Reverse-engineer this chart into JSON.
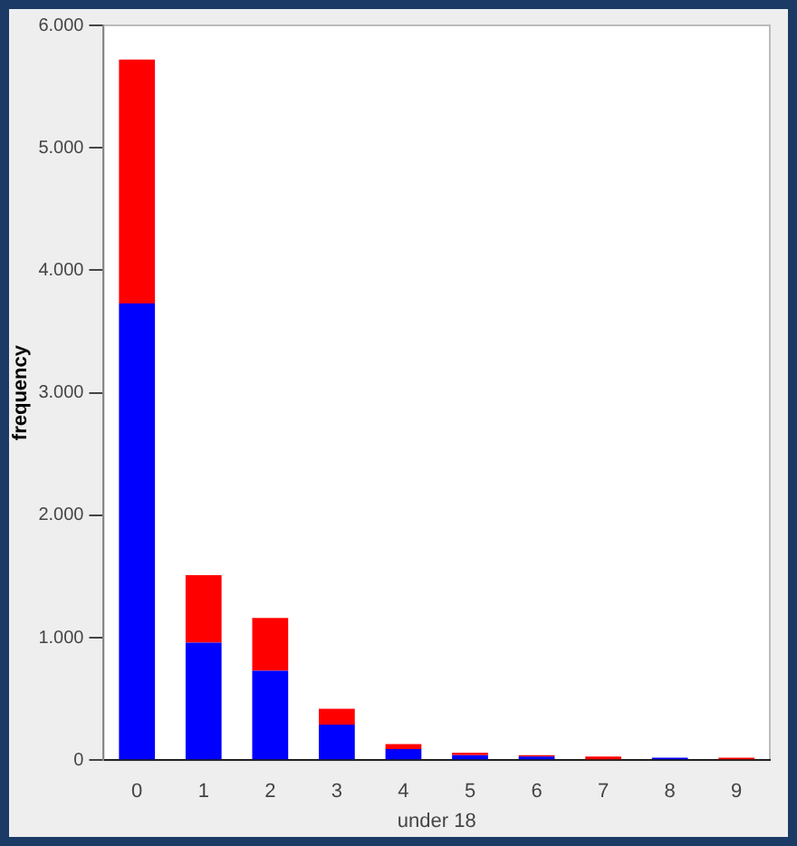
{
  "chart_data": {
    "type": "bar",
    "stacked": true,
    "xlabel": "under 18",
    "ylabel": "frequency",
    "categories": [
      "0",
      "1",
      "2",
      "3",
      "4",
      "5",
      "6",
      "7",
      "8",
      "9"
    ],
    "series": [
      {
        "color": "#0000ff",
        "values": [
          3730,
          960,
          730,
          290,
          90,
          40,
          30,
          0,
          20,
          0
        ]
      },
      {
        "color": "#ff0000",
        "values": [
          1990,
          550,
          430,
          130,
          40,
          20,
          10,
          30,
          0,
          20
        ]
      }
    ],
    "ylim": [
      0,
      6000
    ],
    "yticks": [
      {
        "value": 0,
        "label": "0"
      },
      {
        "value": 1000,
        "label": "1.000"
      },
      {
        "value": 2000,
        "label": "2.000"
      },
      {
        "value": 3000,
        "label": "3.000"
      },
      {
        "value": 4000,
        "label": "4.000"
      },
      {
        "value": 5000,
        "label": "5.000"
      },
      {
        "value": 6000,
        "label": "6.000"
      }
    ],
    "grid": false,
    "legend": false
  }
}
